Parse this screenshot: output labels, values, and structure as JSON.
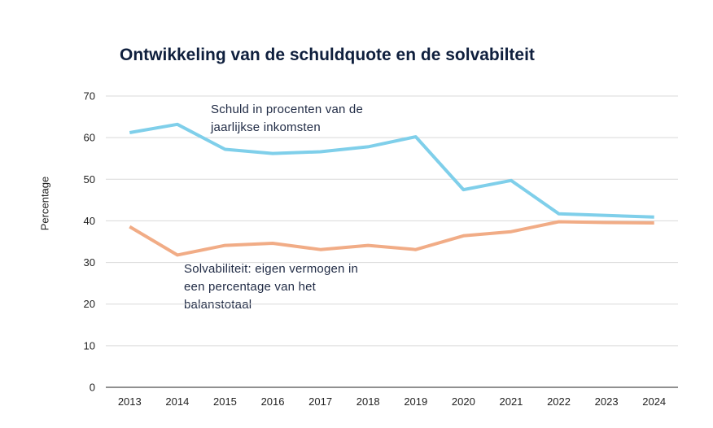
{
  "chart_data": {
    "type": "line",
    "title": "Ontwikkeling van de schuldquote en de solvabilteit",
    "xlabel": "",
    "ylabel": "Percentage",
    "ylim": [
      0,
      70
    ],
    "yticks": [
      "0",
      "10",
      "20",
      "30",
      "40",
      "50",
      "60",
      "70"
    ],
    "grid": true,
    "categories": [
      "2013",
      "2014",
      "2015",
      "2016",
      "2017",
      "2018",
      "2019",
      "2020",
      "2021",
      "2022",
      "2023",
      "2024"
    ],
    "series": [
      {
        "name": "Schuld",
        "color": "#7fcfea",
        "label_lines": [
          "Schuld in procenten van de",
          "jaarlijkse inkomsten"
        ],
        "values": [
          61.2,
          63.2,
          57.2,
          56.2,
          56.6,
          57.8,
          60.2,
          47.5,
          49.7,
          41.7,
          41.3,
          40.9
        ]
      },
      {
        "name": "Solvabiliteit",
        "color": "#f1ac86",
        "label_lines": [
          "Solvabiliteit: eigen vermogen in",
          "een percentage van het",
          "balanstotaal"
        ],
        "values": [
          38.6,
          31.8,
          34.1,
          34.6,
          33.1,
          34.1,
          33.1,
          36.4,
          37.4,
          39.8,
          39.6,
          39.5
        ]
      }
    ]
  }
}
